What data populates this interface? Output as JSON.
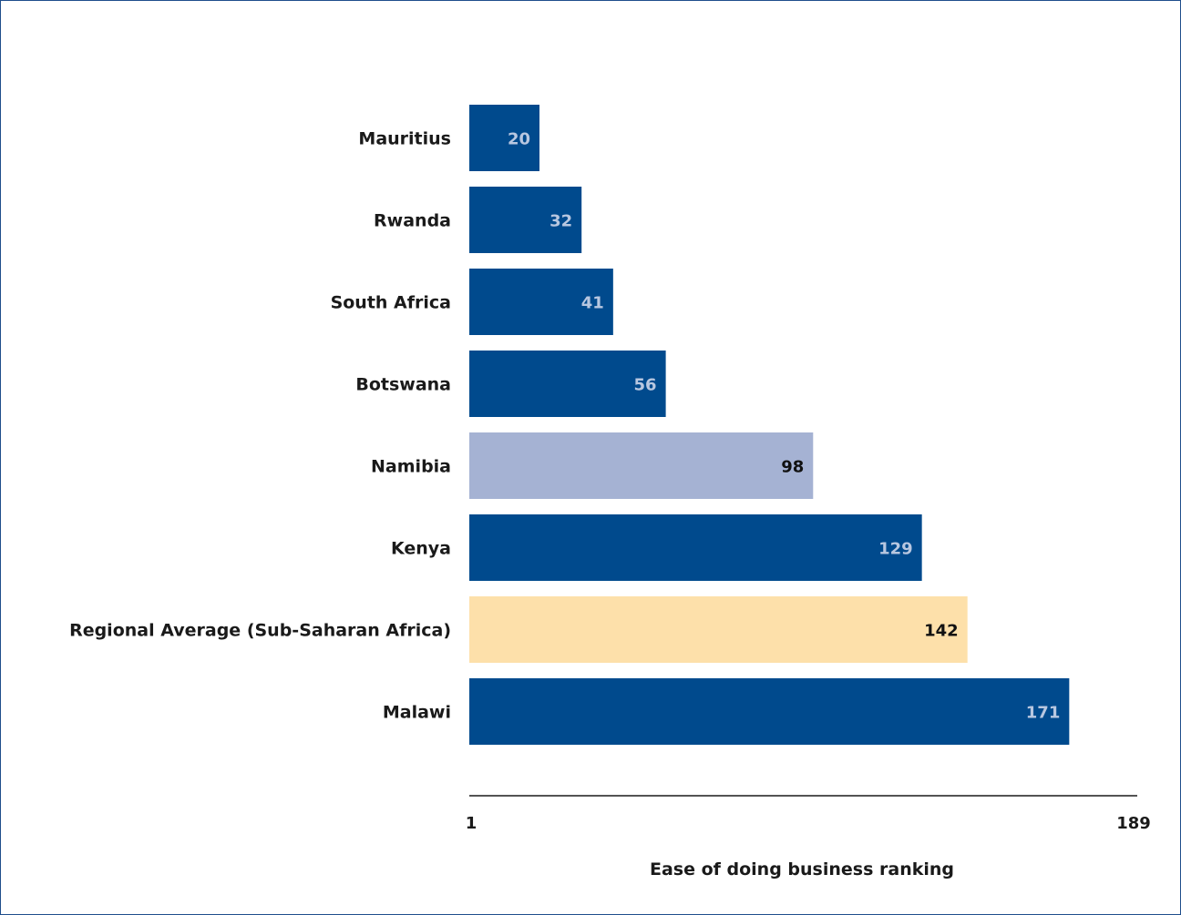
{
  "chart_data": {
    "type": "bar",
    "orientation": "horizontal",
    "categories": [
      "Mauritius",
      "Rwanda",
      "South Africa",
      "Botswana",
      "Namibia",
      "Kenya",
      "Regional Average (Sub-Saharan Africa)",
      "Malawi"
    ],
    "values": [
      20,
      32,
      41,
      56,
      98,
      129,
      142,
      171
    ],
    "bar_colors": [
      "#004a8d",
      "#004a8d",
      "#004a8d",
      "#004a8d",
      "#a5b2d3",
      "#004a8d",
      "#fde0aa",
      "#004a8d"
    ],
    "label_colors": [
      "#b8c7e0",
      "#b8c7e0",
      "#b8c7e0",
      "#b8c7e0",
      "#111111",
      "#b8c7e0",
      "#111111",
      "#b8c7e0"
    ],
    "title": "",
    "xlabel": "Ease of doing business ranking",
    "ylabel": "",
    "xlim": [
      1,
      189
    ],
    "x_ticks": [
      "1",
      "189"
    ],
    "grid": false,
    "legend": "none"
  }
}
